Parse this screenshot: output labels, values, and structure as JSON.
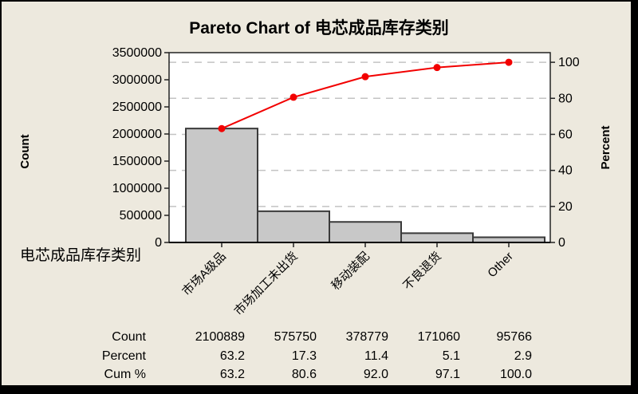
{
  "window": {
    "background_color": "#EDE9DE",
    "frame_color": "#000000"
  },
  "title": "Pareto Chart of 电芯成品库存类别",
  "chart_data": {
    "type": "pareto (bar + cumulative line)",
    "title": "Pareto Chart of 电芯成品库存类别",
    "xlabel": "电芯成品库存类别",
    "ylabel_left": "Count",
    "ylabel_right": "Percent",
    "categories": [
      "市场A级品",
      "市场加工未出货",
      "移动装配",
      "不良退货",
      "Other"
    ],
    "counts": [
      2100889,
      575750,
      378779,
      171060,
      95766
    ],
    "percents": [
      63.2,
      17.3,
      11.4,
      5.1,
      2.9
    ],
    "cum_percents": [
      63.2,
      80.6,
      92.0,
      97.1,
      100.0
    ],
    "count_axis": {
      "min": 0,
      "max": 3500000,
      "ticks": [
        0,
        500000,
        1000000,
        1500000,
        2000000,
        2500000,
        3000000,
        3500000
      ]
    },
    "percent_axis": {
      "min": 0,
      "max": 100,
      "ticks": [
        0,
        20,
        40,
        60,
        80,
        100
      ]
    },
    "grid": "horizontal dashed gridlines at percent ticks 20-100",
    "legend": "none",
    "colors": {
      "bar_fill": "#C8C8C8",
      "bar_border": "#3A3A3A",
      "line": "#F20000",
      "marker": "#F20000",
      "gridline": "#C3C3C3",
      "axis": "#222222",
      "plot_background": "#FFFFFF"
    }
  },
  "table": {
    "rows": [
      {
        "label": "Count",
        "values": [
          "2100889",
          "575750",
          "378779",
          "171060",
          "95766"
        ]
      },
      {
        "label": "Percent",
        "values": [
          "63.2",
          "17.3",
          "11.4",
          "5.1",
          "2.9"
        ]
      },
      {
        "label": "Cum %",
        "values": [
          "63.2",
          "80.6",
          "92.0",
          "97.1",
          "100.0"
        ]
      }
    ]
  }
}
